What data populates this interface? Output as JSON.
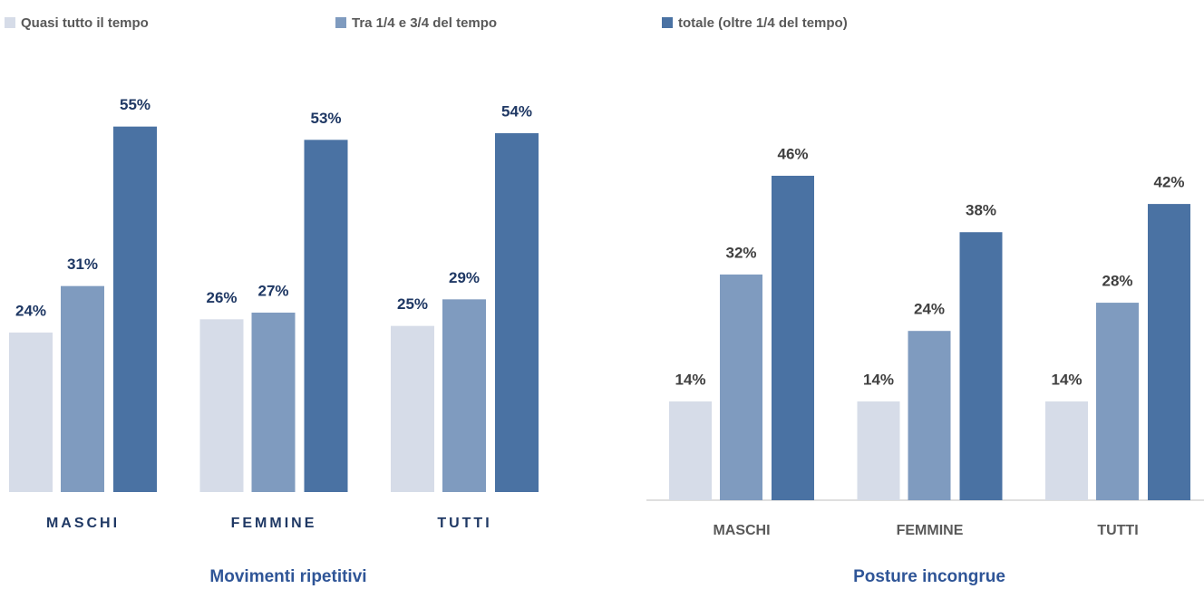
{
  "chart_data": [
    {
      "type": "bar",
      "title": "Movimenti ripetitivi",
      "categories": [
        "MASCHI",
        "FEMMINE",
        "TUTTI"
      ],
      "series": [
        {
          "name": "Quasi tutto il tempo",
          "color": "#d6dce8",
          "values": [
            24,
            26,
            25
          ],
          "value_labels": [
            "24%",
            "26%",
            "25%"
          ]
        },
        {
          "name": "Tra 1/4 e 3/4 del tempo",
          "color": "#7f9bbf",
          "values": [
            31,
            27,
            29
          ],
          "value_labels": [
            "31%",
            "27%",
            "29%"
          ]
        },
        {
          "name": "totale (oltre 1/4 del tempo)",
          "color": "#4a72a3",
          "values": [
            55,
            53,
            54
          ],
          "value_labels": [
            "55%",
            "53%",
            "54%"
          ]
        }
      ],
      "ylim": [
        0,
        60
      ]
    },
    {
      "type": "bar",
      "title": "Posture incongrue",
      "categories": [
        "MASCHI",
        "FEMMINE",
        "TUTTI"
      ],
      "series": [
        {
          "color": "#d6dce8",
          "values": [
            14,
            14,
            14
          ],
          "value_labels": [
            "14%",
            "14%",
            "14%"
          ]
        },
        {
          "color": "#7f9bbf",
          "values": [
            32,
            24,
            28
          ],
          "value_labels": [
            "32%",
            "24%",
            "28%"
          ]
        },
        {
          "color": "#4a72a3",
          "values": [
            46,
            38,
            42
          ],
          "value_labels": [
            "46%",
            "38%",
            "42%"
          ]
        }
      ],
      "ylim": [
        0,
        60
      ]
    }
  ]
}
